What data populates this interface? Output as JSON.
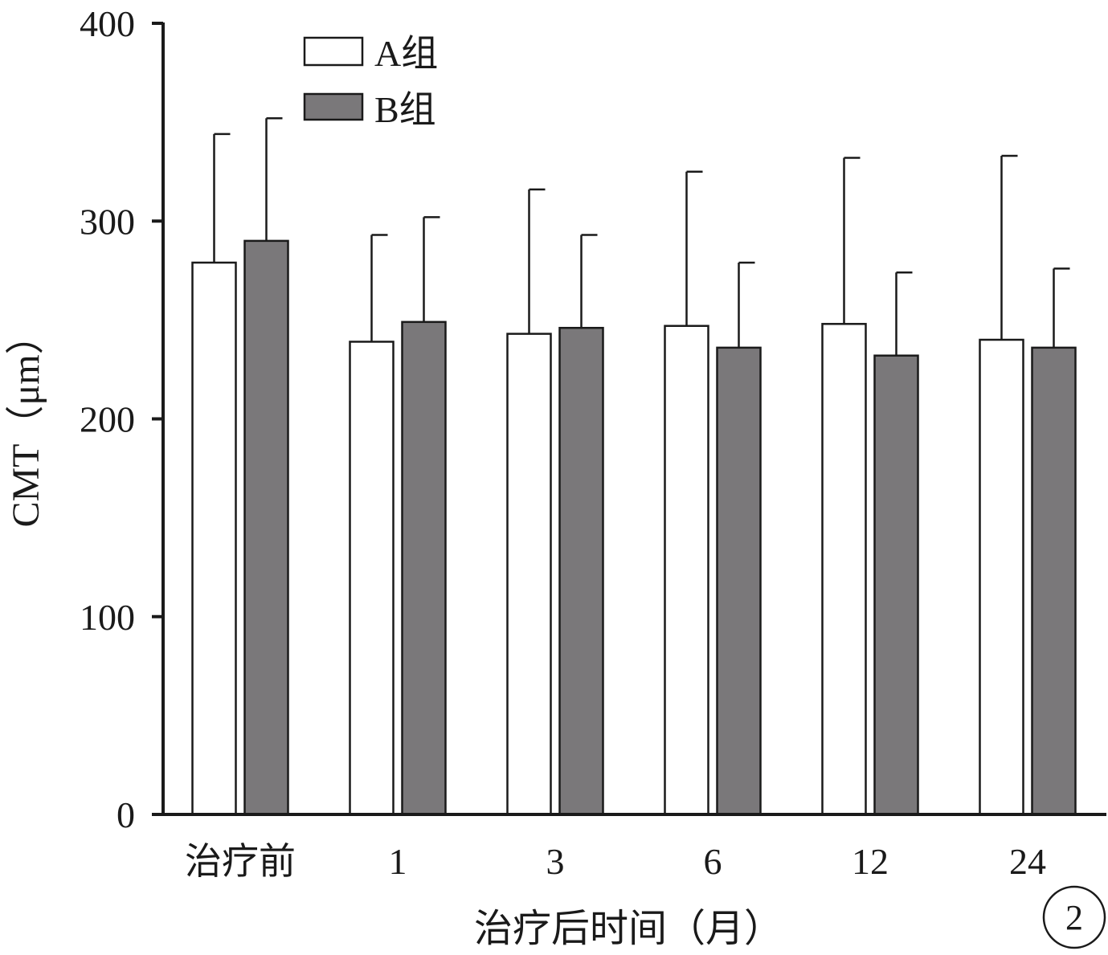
{
  "chart_data": {
    "type": "bar",
    "title": "",
    "xlabel": "治疗后时间（月）",
    "ylabel": "CMT（μm）",
    "categories": [
      "治疗前",
      "1",
      "3",
      "6",
      "12",
      "24"
    ],
    "ylim": [
      0,
      400
    ],
    "yticks": [
      "0",
      "100",
      "200",
      "300",
      "400"
    ],
    "grid": false,
    "legend_position": "top-left",
    "series": [
      {
        "name": "A组",
        "color": "#ffffff",
        "values": [
          279,
          239,
          243,
          247,
          248,
          240
        ],
        "error_upper": [
          344,
          293,
          316,
          325,
          332,
          333
        ]
      },
      {
        "name": "B组",
        "color": "#7a787a",
        "values": [
          290,
          249,
          246,
          236,
          232,
          236
        ],
        "error_upper": [
          352,
          302,
          293,
          279,
          274,
          276
        ]
      }
    ],
    "panel_label": "2"
  }
}
